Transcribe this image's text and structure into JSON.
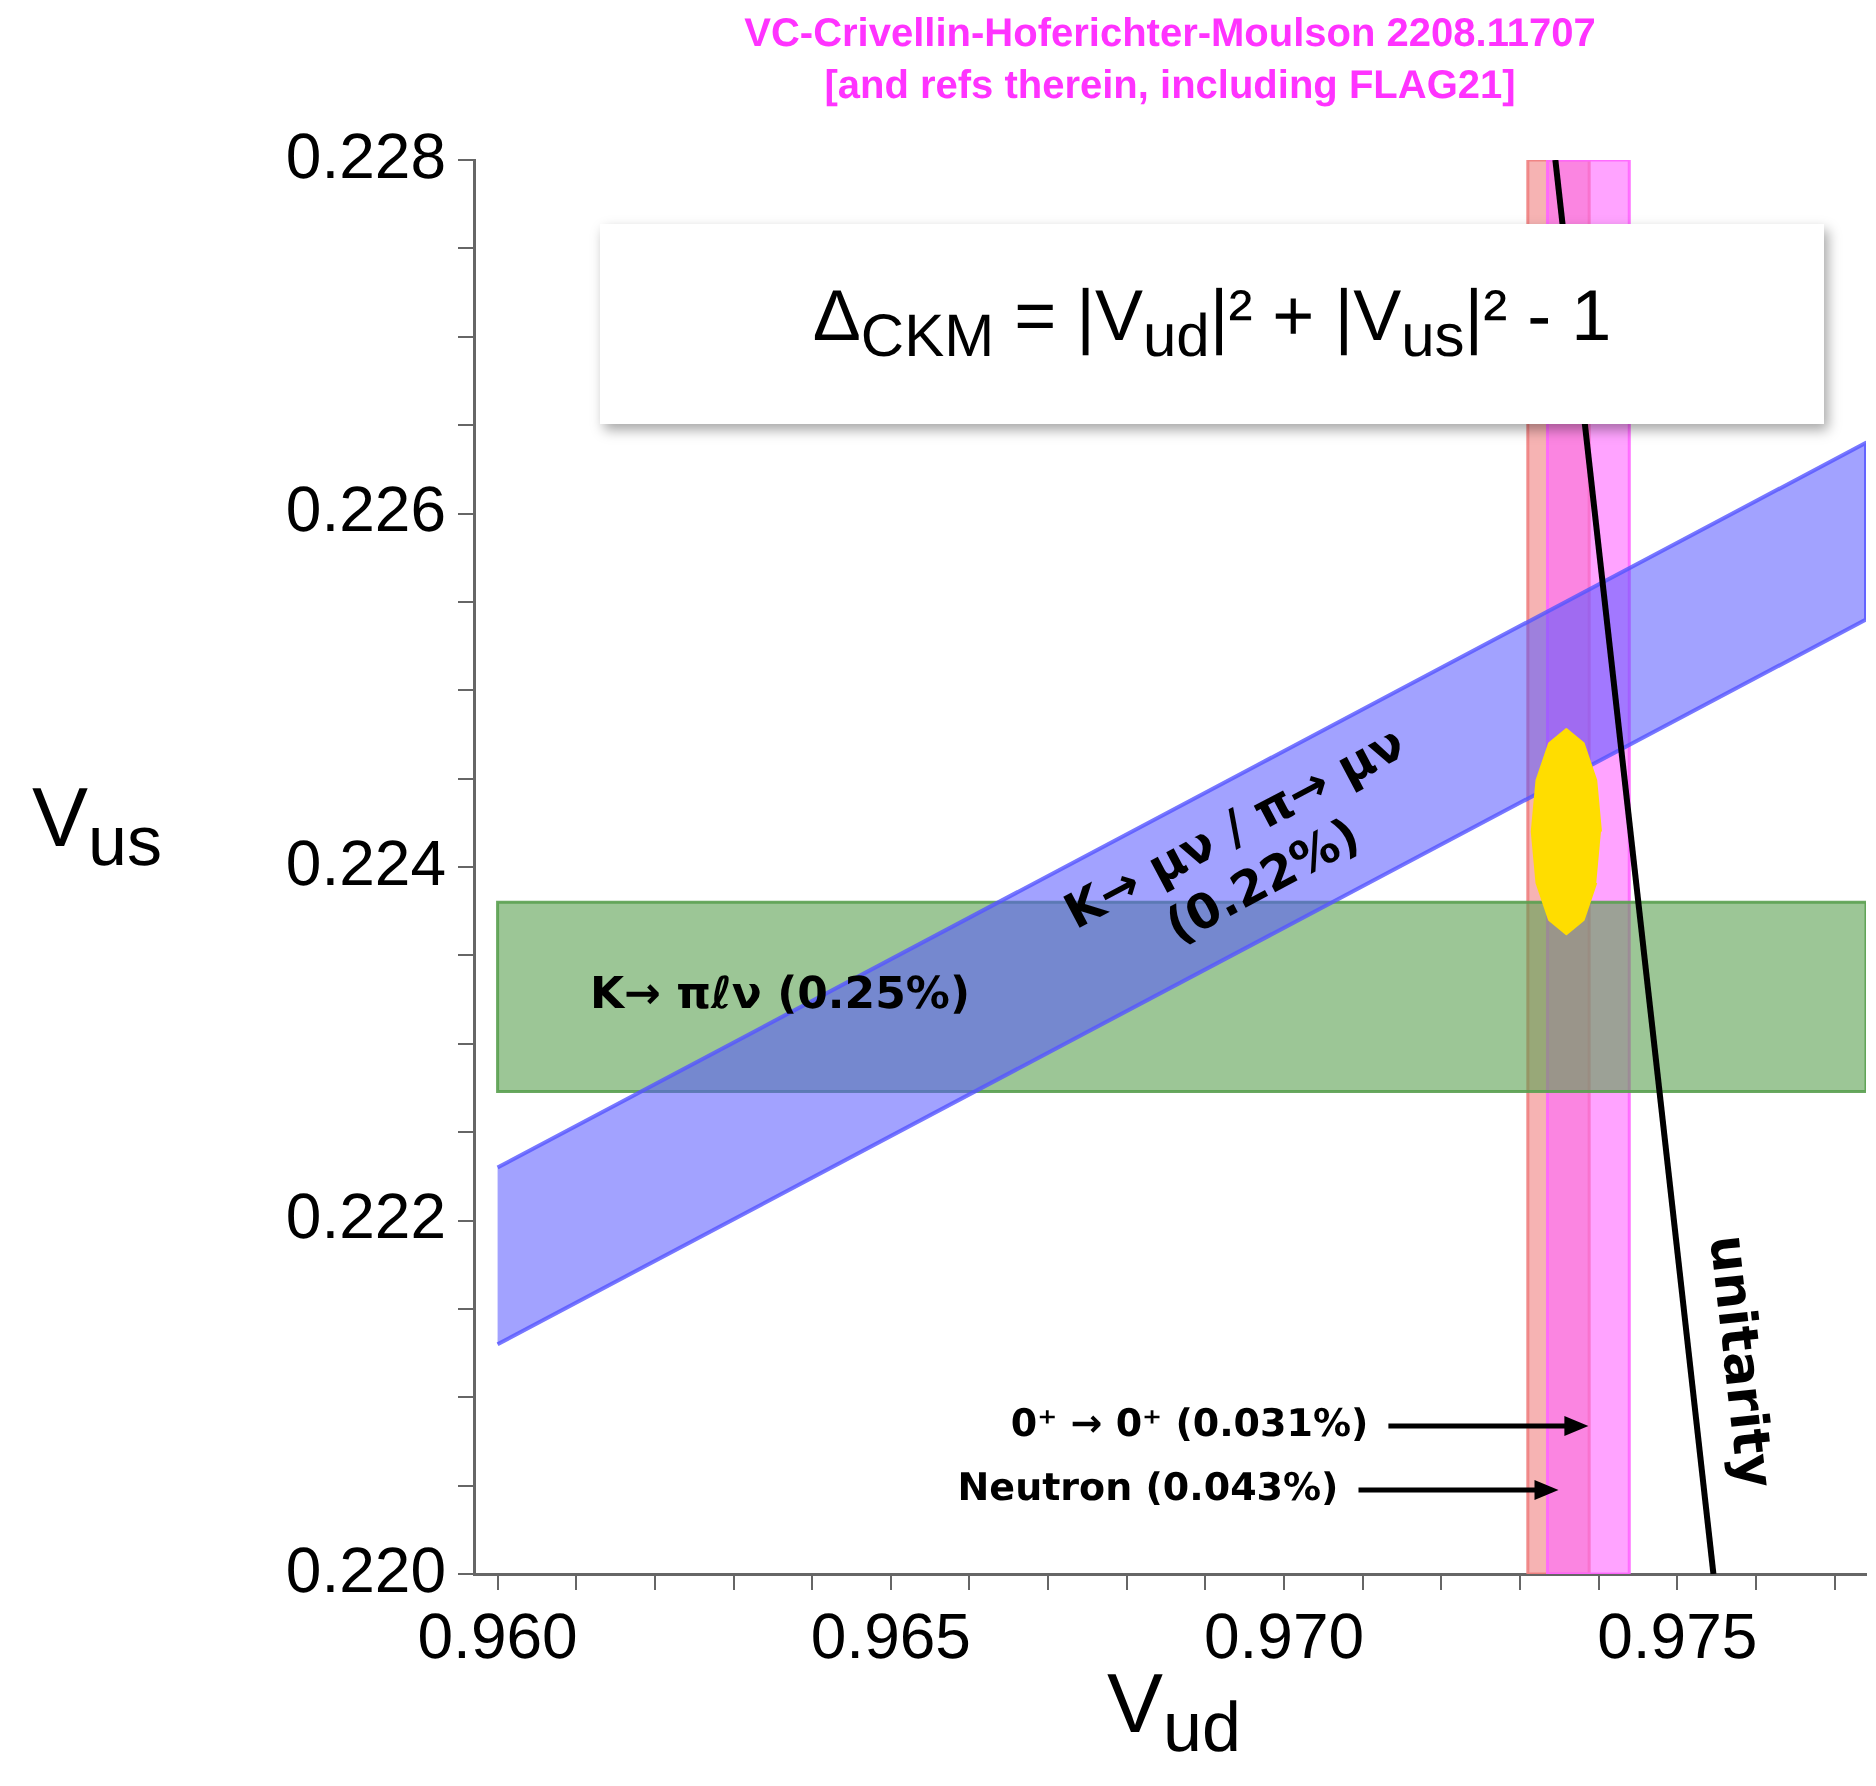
{
  "chart_data": {
    "type": "line",
    "title": "VC-Crivellin-Hoferichter-Moulson  2208.11707",
    "subtitle": "[and refs therein, including FLAG21]",
    "xlabel": "V$_{ud}$",
    "ylabel": "V$_{us}$",
    "annotations": [
      "Δ$_{CKM}$ = |V$_{ud}$|² + |V$_{us}$|² - 1"
    ],
    "xlim": [
      0.9597,
      0.9774
    ],
    "xticks": [
      {
        "value": 0.96,
        "label": "0.960"
      },
      {
        "value": 0.961,
        "label": null
      },
      {
        "value": 0.962,
        "label": null
      },
      {
        "value": 0.963,
        "label": null
      },
      {
        "value": 0.964,
        "label": null
      },
      {
        "value": 0.965,
        "label": "0.965"
      },
      {
        "value": 0.966,
        "label": null
      },
      {
        "value": 0.967,
        "label": null
      },
      {
        "value": 0.968,
        "label": null
      },
      {
        "value": 0.969,
        "label": null
      },
      {
        "value": 0.97,
        "label": "0.970"
      },
      {
        "value": 0.971,
        "label": null
      },
      {
        "value": 0.972,
        "label": null
      },
      {
        "value": 0.973,
        "label": null
      },
      {
        "value": 0.974,
        "label": null
      },
      {
        "value": 0.975,
        "label": "0.975"
      },
      {
        "value": 0.976,
        "label": null
      },
      {
        "value": 0.977,
        "label": null
      }
    ],
    "ylim": [
      0.22,
      0.228
    ],
    "yticks": [
      {
        "value": 0.22,
        "label": "0.220"
      },
      {
        "value": 0.2205,
        "label": null
      },
      {
        "value": 0.221,
        "label": null
      },
      {
        "value": 0.2215,
        "label": null
      },
      {
        "value": 0.222,
        "label": "0.222"
      },
      {
        "value": 0.2225,
        "label": null
      },
      {
        "value": 0.223,
        "label": null
      },
      {
        "value": 0.2235,
        "label": null
      },
      {
        "value": 0.224,
        "label": "0.224"
      },
      {
        "value": 0.2245,
        "label": null
      },
      {
        "value": 0.225,
        "label": null
      },
      {
        "value": 0.2255,
        "label": null
      },
      {
        "value": 0.226,
        "label": "0.226"
      },
      {
        "value": 0.2265,
        "label": null
      },
      {
        "value": 0.227,
        "label": null
      },
      {
        "value": 0.2275,
        "label": null
      },
      {
        "value": 0.228,
        "label": "0.228"
      }
    ],
    "series": [
      {
        "type": "area",
        "name": "K→ μν / π→ μν (0.22%)",
        "color": "#5555ff",
        "x": [
          0.96,
          0.9774,
          0.9774,
          0.96
        ],
        "values": [
          0.2213,
          0.2254,
          0.2264,
          0.2223
        ]
      },
      {
        "type": "line",
        "name": "unitarity",
        "color": "#000000",
        "x": [
          0.97345,
          0.97546
        ],
        "values": [
          0.228,
          0.22
        ]
      },
      {
        "type": "area",
        "color": "#ffdd00",
        "x": [
          0.97403,
          0.97397,
          0.97381,
          0.97359,
          0.97337,
          0.97321,
          0.97315,
          0.97321,
          0.97337,
          0.97359,
          0.97381,
          0.97397
        ],
        "values": [
          0.2242,
          0.22449,
          0.2247,
          0.22478,
          0.2247,
          0.22449,
          0.2242,
          0.22391,
          0.2237,
          0.22362,
          0.2237,
          0.22391
        ]
      }
    ],
    "bands": [
      {
        "axis": "x",
        "from": 0.9731,
        "to": 0.97388,
        "label": "Neutron (0.043%)",
        "color": "#f08080"
      },
      {
        "axis": "x",
        "from": 0.97335,
        "to": 0.97439,
        "label": "0⁺ → 0⁺ (0.031%)",
        "color": "#ff66ff"
      },
      {
        "axis": "y",
        "from": 0.22273,
        "to": 0.2238,
        "label": "K→ πℓν (0.25%)",
        "color": "#5aa050"
      }
    ]
  }
}
